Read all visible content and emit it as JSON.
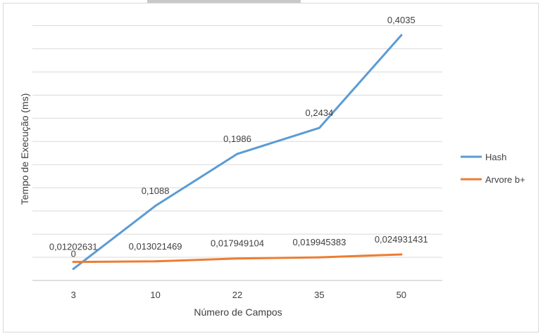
{
  "chart_data": {
    "type": "line",
    "title": "",
    "xlabel": "Número de Campos",
    "ylabel": "Tempo de Execução (ms)",
    "categories": [
      "3",
      "10",
      "22",
      "35",
      "50"
    ],
    "ylim": [
      -0.02,
      0.44
    ],
    "grid": true,
    "legend_position": "right",
    "series": [
      {
        "name": "Hash",
        "color": "#5b9bd5",
        "values": [
          0,
          0.1088,
          0.1986,
          0.2434,
          0.4035
        ],
        "labels": [
          "0",
          "0,1088",
          "0,1986",
          "0,2434",
          "0,4035"
        ]
      },
      {
        "name": "Arvore b+",
        "color": "#ed7d31",
        "values": [
          0.01202631,
          0.013021469,
          0.017949104,
          0.019945383,
          0.024931431
        ],
        "labels": [
          "0,01202631",
          "0,013021469",
          "0,017949104",
          "0,019945383",
          "0,024931431"
        ]
      }
    ]
  }
}
